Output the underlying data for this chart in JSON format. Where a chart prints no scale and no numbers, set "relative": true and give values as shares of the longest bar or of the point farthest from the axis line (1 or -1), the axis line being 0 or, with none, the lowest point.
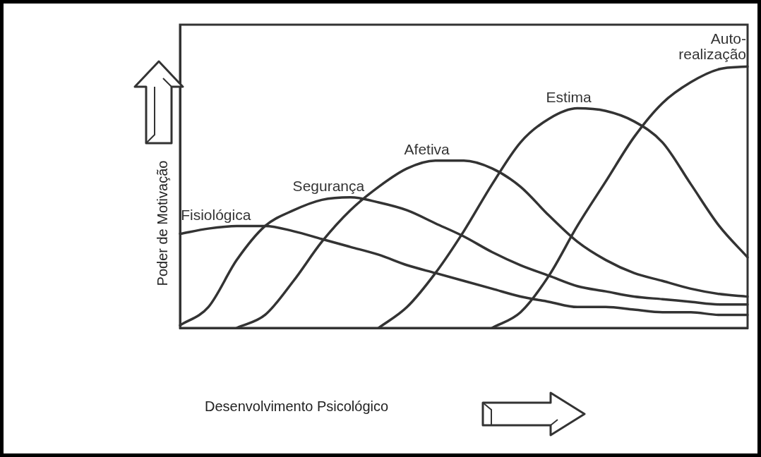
{
  "chart_data": {
    "type": "line",
    "relative": true,
    "xlabel": "Desenvolvimento Psicológico",
    "ylabel": "Poder de Motivação",
    "legend": false,
    "grid": false,
    "marker": "none",
    "line_style": "solid",
    "tick_labels": false,
    "categories": [
      null,
      null,
      null,
      null,
      null,
      null,
      null,
      null,
      null,
      null,
      null,
      null,
      null,
      null,
      null,
      null,
      null,
      null,
      null,
      null,
      null
    ],
    "series": [
      {
        "name": "Fisiológica",
        "color": "#333333",
        "values": [
          0.36,
          0.38,
          0.39,
          0.39,
          0.37,
          0.34,
          0.31,
          0.28,
          0.24,
          0.21,
          0.18,
          0.15,
          0.12,
          0.1,
          0.08,
          0.08,
          0.07,
          0.06,
          0.06,
          0.05,
          0.05
        ]
      },
      {
        "name": "Segurança",
        "color": "#333333",
        "values": [
          0.01,
          0.08,
          0.26,
          0.39,
          0.45,
          0.49,
          0.5,
          0.48,
          0.45,
          0.4,
          0.35,
          0.29,
          0.24,
          0.2,
          0.16,
          0.14,
          0.12,
          0.11,
          0.1,
          0.09,
          0.09
        ]
      },
      {
        "name": "Afetiva",
        "color": "#333333",
        "values": [
          null,
          null,
          0,
          0.05,
          0.18,
          0.33,
          0.45,
          0.54,
          0.61,
          0.64,
          0.64,
          0.61,
          0.54,
          0.43,
          0.33,
          0.26,
          0.21,
          0.18,
          0.15,
          0.13,
          0.12
        ]
      },
      {
        "name": "Estima",
        "color": "#333333",
        "values": [
          null,
          null,
          null,
          null,
          null,
          null,
          null,
          0,
          0.08,
          0.21,
          0.37,
          0.55,
          0.71,
          0.8,
          0.84,
          0.83,
          0.79,
          0.71,
          0.55,
          0.39,
          0.27
        ]
      },
      {
        "name": "Auto-realização",
        "color": "#333333",
        "values": [
          null,
          null,
          null,
          null,
          null,
          null,
          null,
          null,
          null,
          null,
          null,
          0,
          0.06,
          0.2,
          0.39,
          0.56,
          0.73,
          0.86,
          0.94,
          0.99,
          1
        ]
      }
    ]
  }
}
